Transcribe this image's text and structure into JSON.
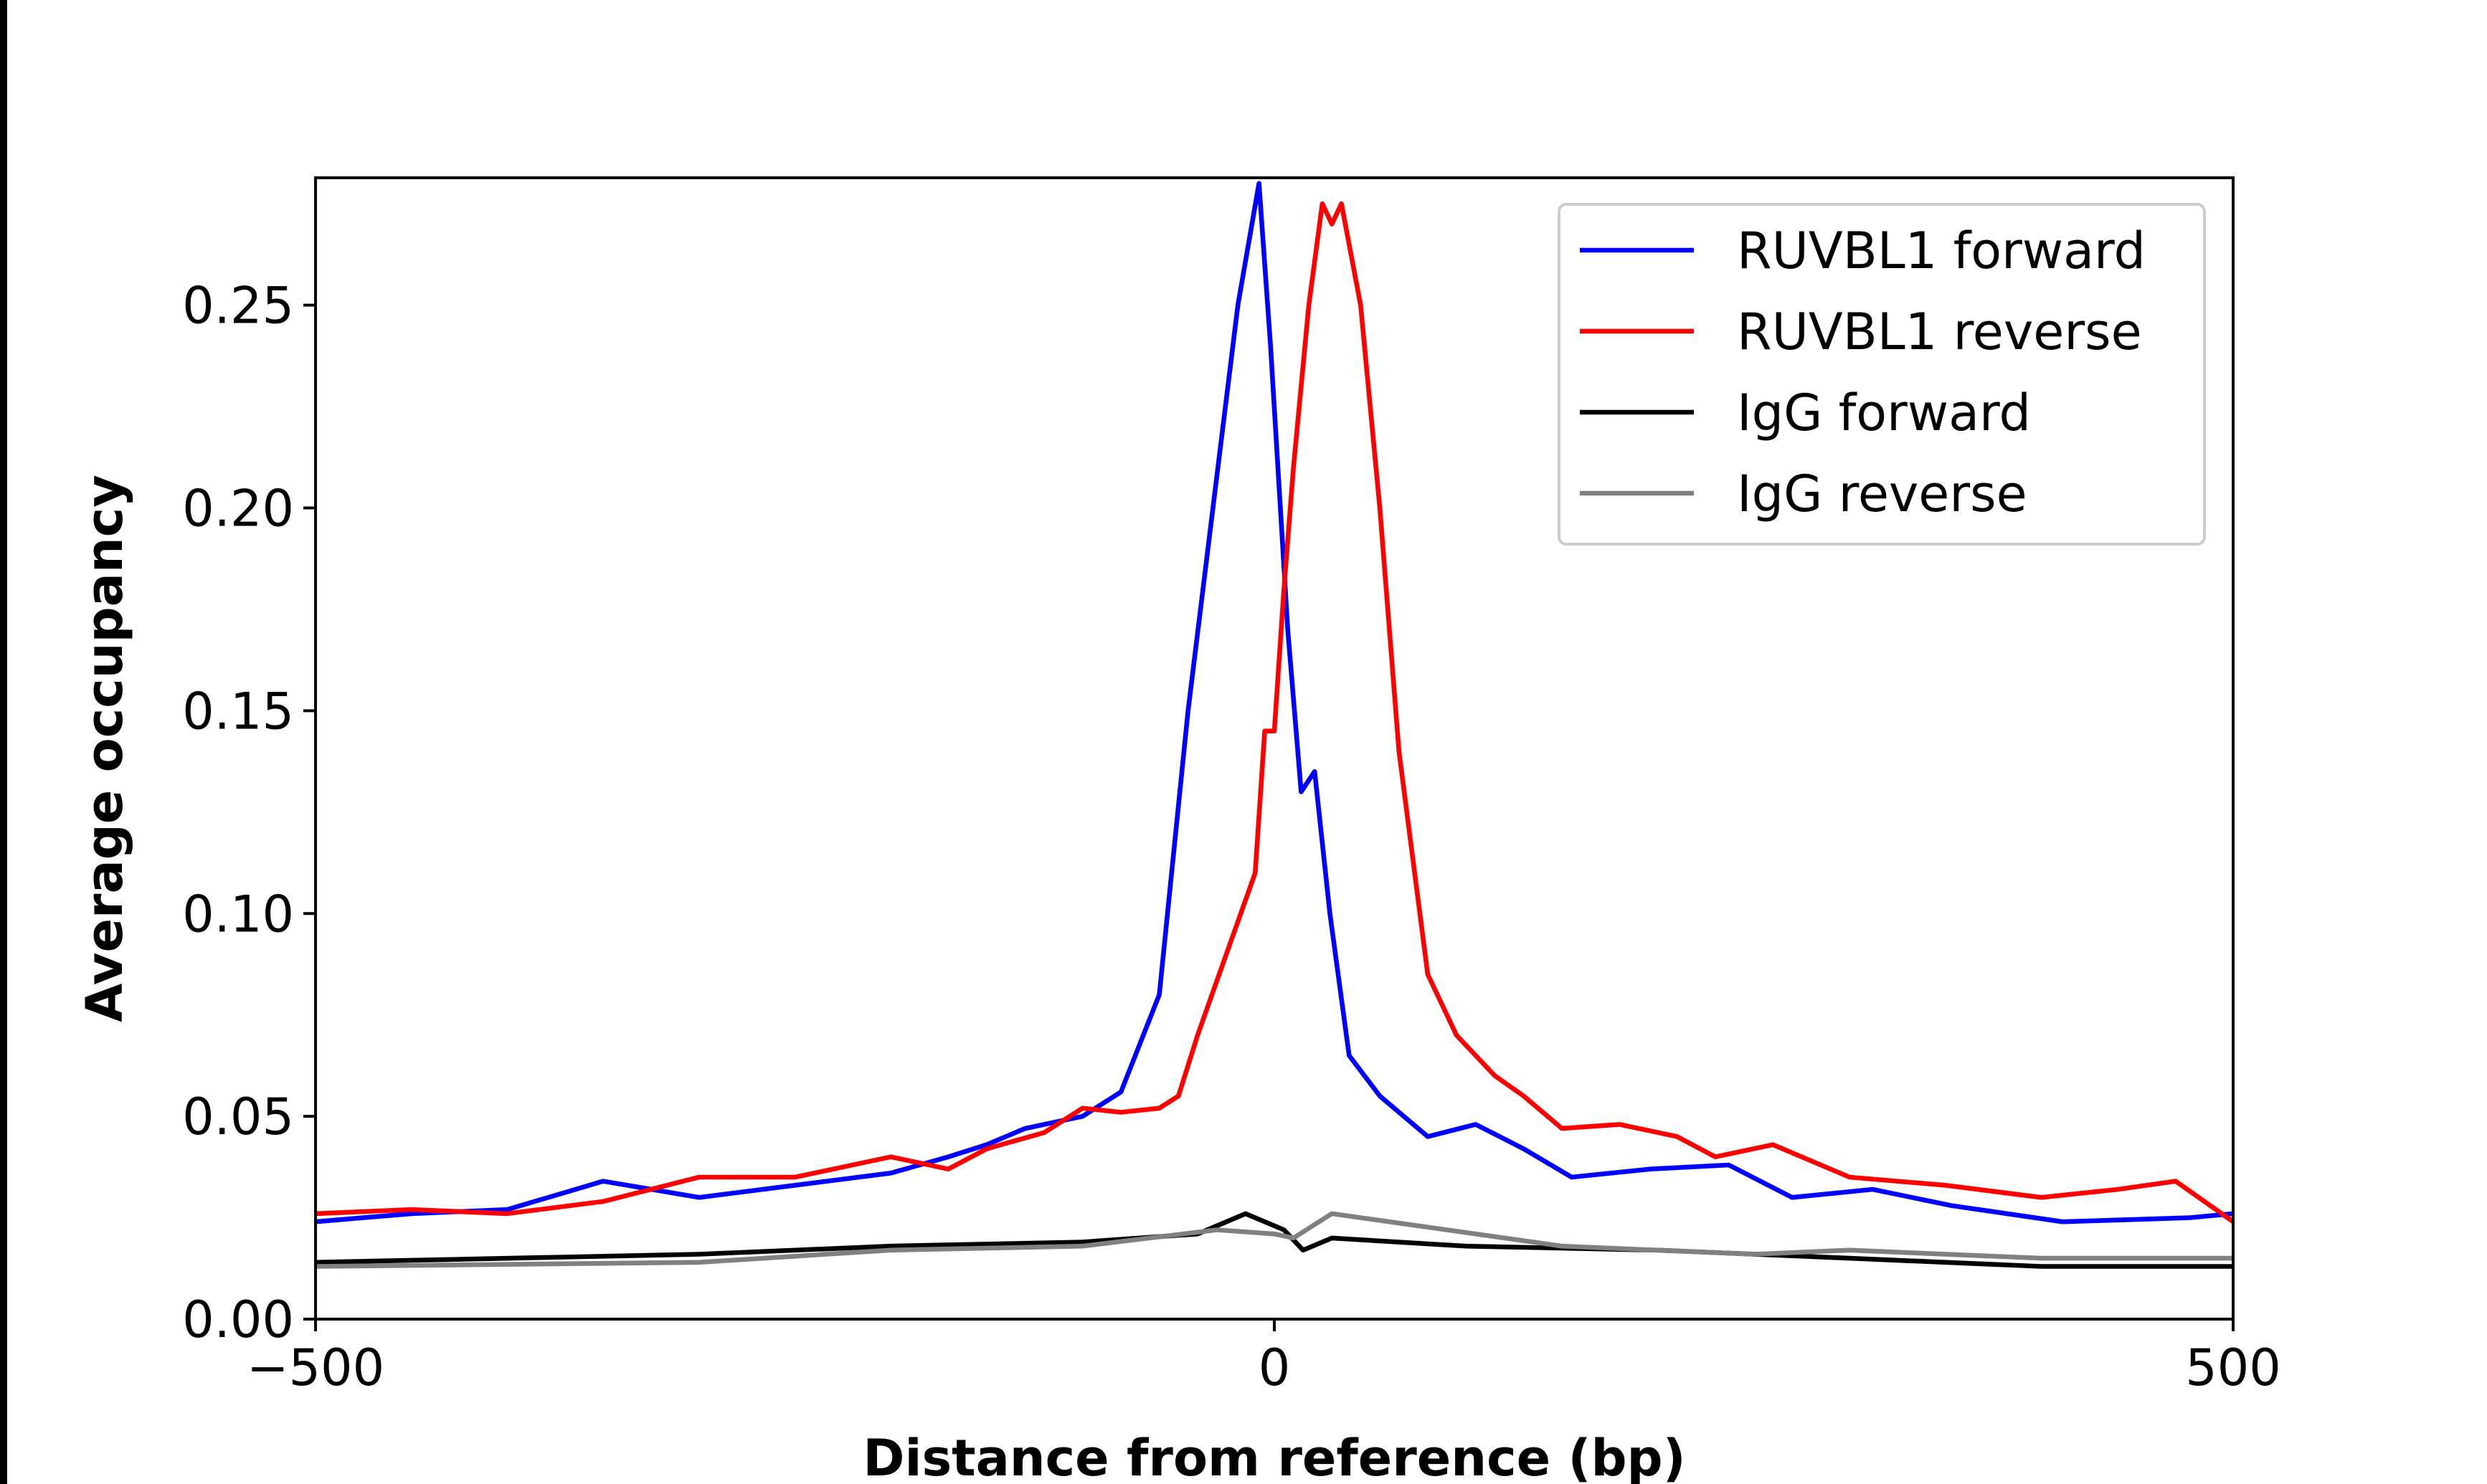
{
  "chart_data": {
    "type": "line",
    "title": "",
    "xlabel": "Distance from reference (bp)",
    "ylabel": "Average occupancy",
    "xlim": [
      -500,
      500
    ],
    "ylim": [
      0,
      0.28
    ],
    "xticks": [
      -500,
      0,
      500
    ],
    "xtick_labels": [
      "−500",
      "0",
      "500"
    ],
    "yticks": [
      0,
      0.05,
      0.1,
      0.15,
      0.2,
      0.25
    ],
    "ytick_labels": [
      "0.00",
      "0.05",
      "0.10",
      "0.15",
      "0.20",
      "0.25"
    ],
    "grid": false,
    "legend_placement": "top-right",
    "series": [
      {
        "name": "RUVBL1 forward",
        "color": "#0000ff",
        "x": [
          -500,
          -450,
          -400,
          -350,
          -300,
          -250,
          -200,
          -170,
          -150,
          -130,
          -100,
          -80,
          -60,
          -45,
          -32,
          -19,
          -8,
          -2,
          7,
          14,
          21,
          29,
          39,
          55,
          80,
          105,
          130,
          155,
          196,
          237,
          270,
          312,
          353,
          411,
          477,
          500
        ],
        "y": [
          0.024,
          0.026,
          0.027,
          0.034,
          0.03,
          0.033,
          0.036,
          0.04,
          0.043,
          0.047,
          0.05,
          0.056,
          0.08,
          0.15,
          0.2,
          0.25,
          0.28,
          0.24,
          0.17,
          0.13,
          0.135,
          0.1,
          0.065,
          0.055,
          0.045,
          0.048,
          0.042,
          0.035,
          0.037,
          0.038,
          0.03,
          0.032,
          0.028,
          0.024,
          0.025,
          0.026
        ]
      },
      {
        "name": "RUVBL1 reverse",
        "color": "#ff0000",
        "x": [
          -500,
          -450,
          -400,
          -350,
          -300,
          -250,
          -200,
          -170,
          -150,
          -120,
          -100,
          -80,
          -60,
          -50,
          -40,
          -25,
          -10,
          -5,
          0,
          5,
          10,
          18,
          25,
          30,
          35,
          45,
          55,
          65,
          80,
          95,
          115,
          130,
          150,
          180,
          210,
          230,
          260,
          300,
          350,
          400,
          440,
          470,
          500
        ],
        "y": [
          0.026,
          0.027,
          0.026,
          0.029,
          0.035,
          0.035,
          0.04,
          0.037,
          0.042,
          0.046,
          0.052,
          0.051,
          0.052,
          0.055,
          0.07,
          0.09,
          0.11,
          0.145,
          0.145,
          0.18,
          0.21,
          0.25,
          0.275,
          0.27,
          0.275,
          0.25,
          0.2,
          0.14,
          0.085,
          0.07,
          0.06,
          0.055,
          0.047,
          0.048,
          0.045,
          0.04,
          0.043,
          0.035,
          0.033,
          0.03,
          0.032,
          0.034,
          0.024
        ]
      },
      {
        "name": "IgG forward",
        "color": "#000000",
        "x": [
          -500,
          -300,
          -200,
          -100,
          -40,
          -15,
          5,
          15,
          30,
          100,
          200,
          300,
          400,
          500
        ],
        "y": [
          0.014,
          0.016,
          0.018,
          0.019,
          0.021,
          0.026,
          0.022,
          0.017,
          0.02,
          0.018,
          0.017,
          0.015,
          0.013,
          0.013
        ]
      },
      {
        "name": "IgG reverse",
        "color": "#808080",
        "x": [
          -500,
          -300,
          -200,
          -100,
          -30,
          0,
          10,
          30,
          60,
          150,
          250,
          300,
          400,
          500
        ],
        "y": [
          0.013,
          0.014,
          0.017,
          0.018,
          0.022,
          0.021,
          0.02,
          0.026,
          0.024,
          0.018,
          0.016,
          0.017,
          0.015,
          0.015
        ]
      }
    ]
  }
}
